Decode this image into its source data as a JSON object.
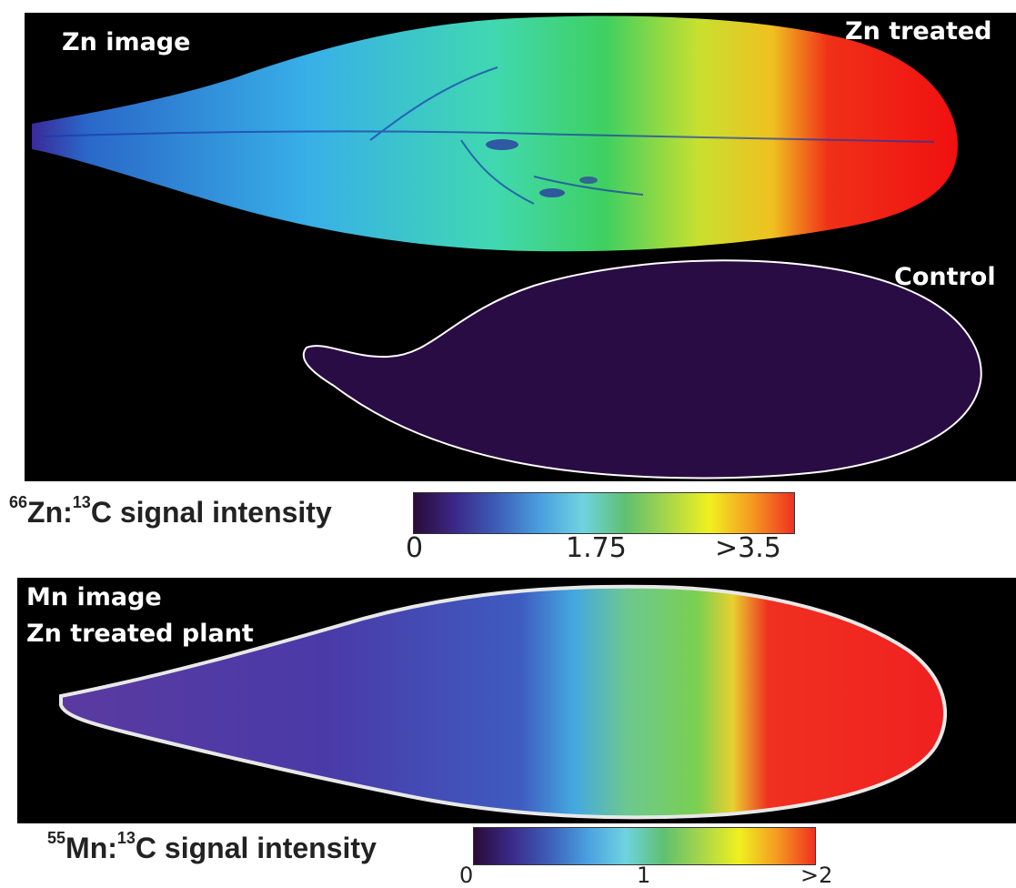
{
  "zn_panel": {
    "label_image": "Zn image",
    "label_treated": "Zn treated",
    "label_control": "Control"
  },
  "zn_scale": {
    "isotope_sup": "66",
    "element": "Zn:",
    "ref_sup": "13",
    "rest": "C signal intensity",
    "ticks": [
      "0",
      "1.75",
      ">3.5"
    ]
  },
  "mn_panel": {
    "label_line1": "Mn image",
    "label_line2": "Zn treated plant"
  },
  "mn_scale": {
    "isotope_sup": "55",
    "element": "Mn:",
    "ref_sup": "13",
    "rest": "C signal intensity",
    "ticks": [
      "0",
      "1",
      ">2"
    ]
  },
  "colormap": [
    "#2a0a36",
    "#3b2a8a",
    "#3d5fb8",
    "#4aa0e0",
    "#6fd3e0",
    "#5ec070",
    "#a6d64a",
    "#f0f020",
    "#f59a20",
    "#f03020"
  ]
}
